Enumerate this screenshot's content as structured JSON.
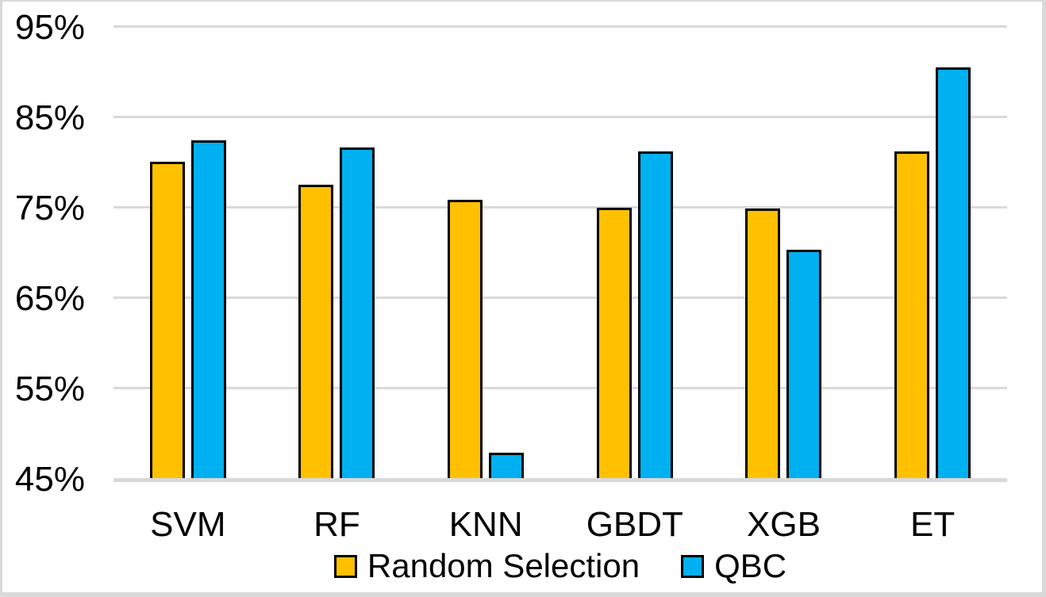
{
  "chart_data": {
    "type": "bar",
    "title": "",
    "xlabel": "",
    "ylabel": "",
    "categories": [
      "SVM",
      "RF",
      "KNN",
      "GBDT",
      "XGB",
      "ET"
    ],
    "series": [
      {
        "name": "Random Selection",
        "color": "#FFC000",
        "values": [
          80.0,
          77.5,
          75.8,
          74.9,
          74.8,
          81.1
        ]
      },
      {
        "name": "QBC",
        "color": "#00B0F0",
        "values": [
          82.4,
          81.6,
          47.8,
          81.1,
          70.3,
          90.4
        ]
      }
    ],
    "ylim": [
      45,
      95
    ],
    "yticks": [
      {
        "value": 95,
        "label": "95%"
      },
      {
        "value": 85,
        "label": "85%"
      },
      {
        "value": 75,
        "label": "75%"
      },
      {
        "value": 65,
        "label": "65%"
      },
      {
        "value": 55,
        "label": "55%"
      },
      {
        "value": 45,
        "label": "45%"
      }
    ],
    "grid": true,
    "legend_position": "bottom",
    "colors": {
      "gridline": "#d9d9d9",
      "bar_outline": "#000000",
      "text": "#000000",
      "background": "#ffffff",
      "frame_border": "#d9d9d9"
    }
  }
}
